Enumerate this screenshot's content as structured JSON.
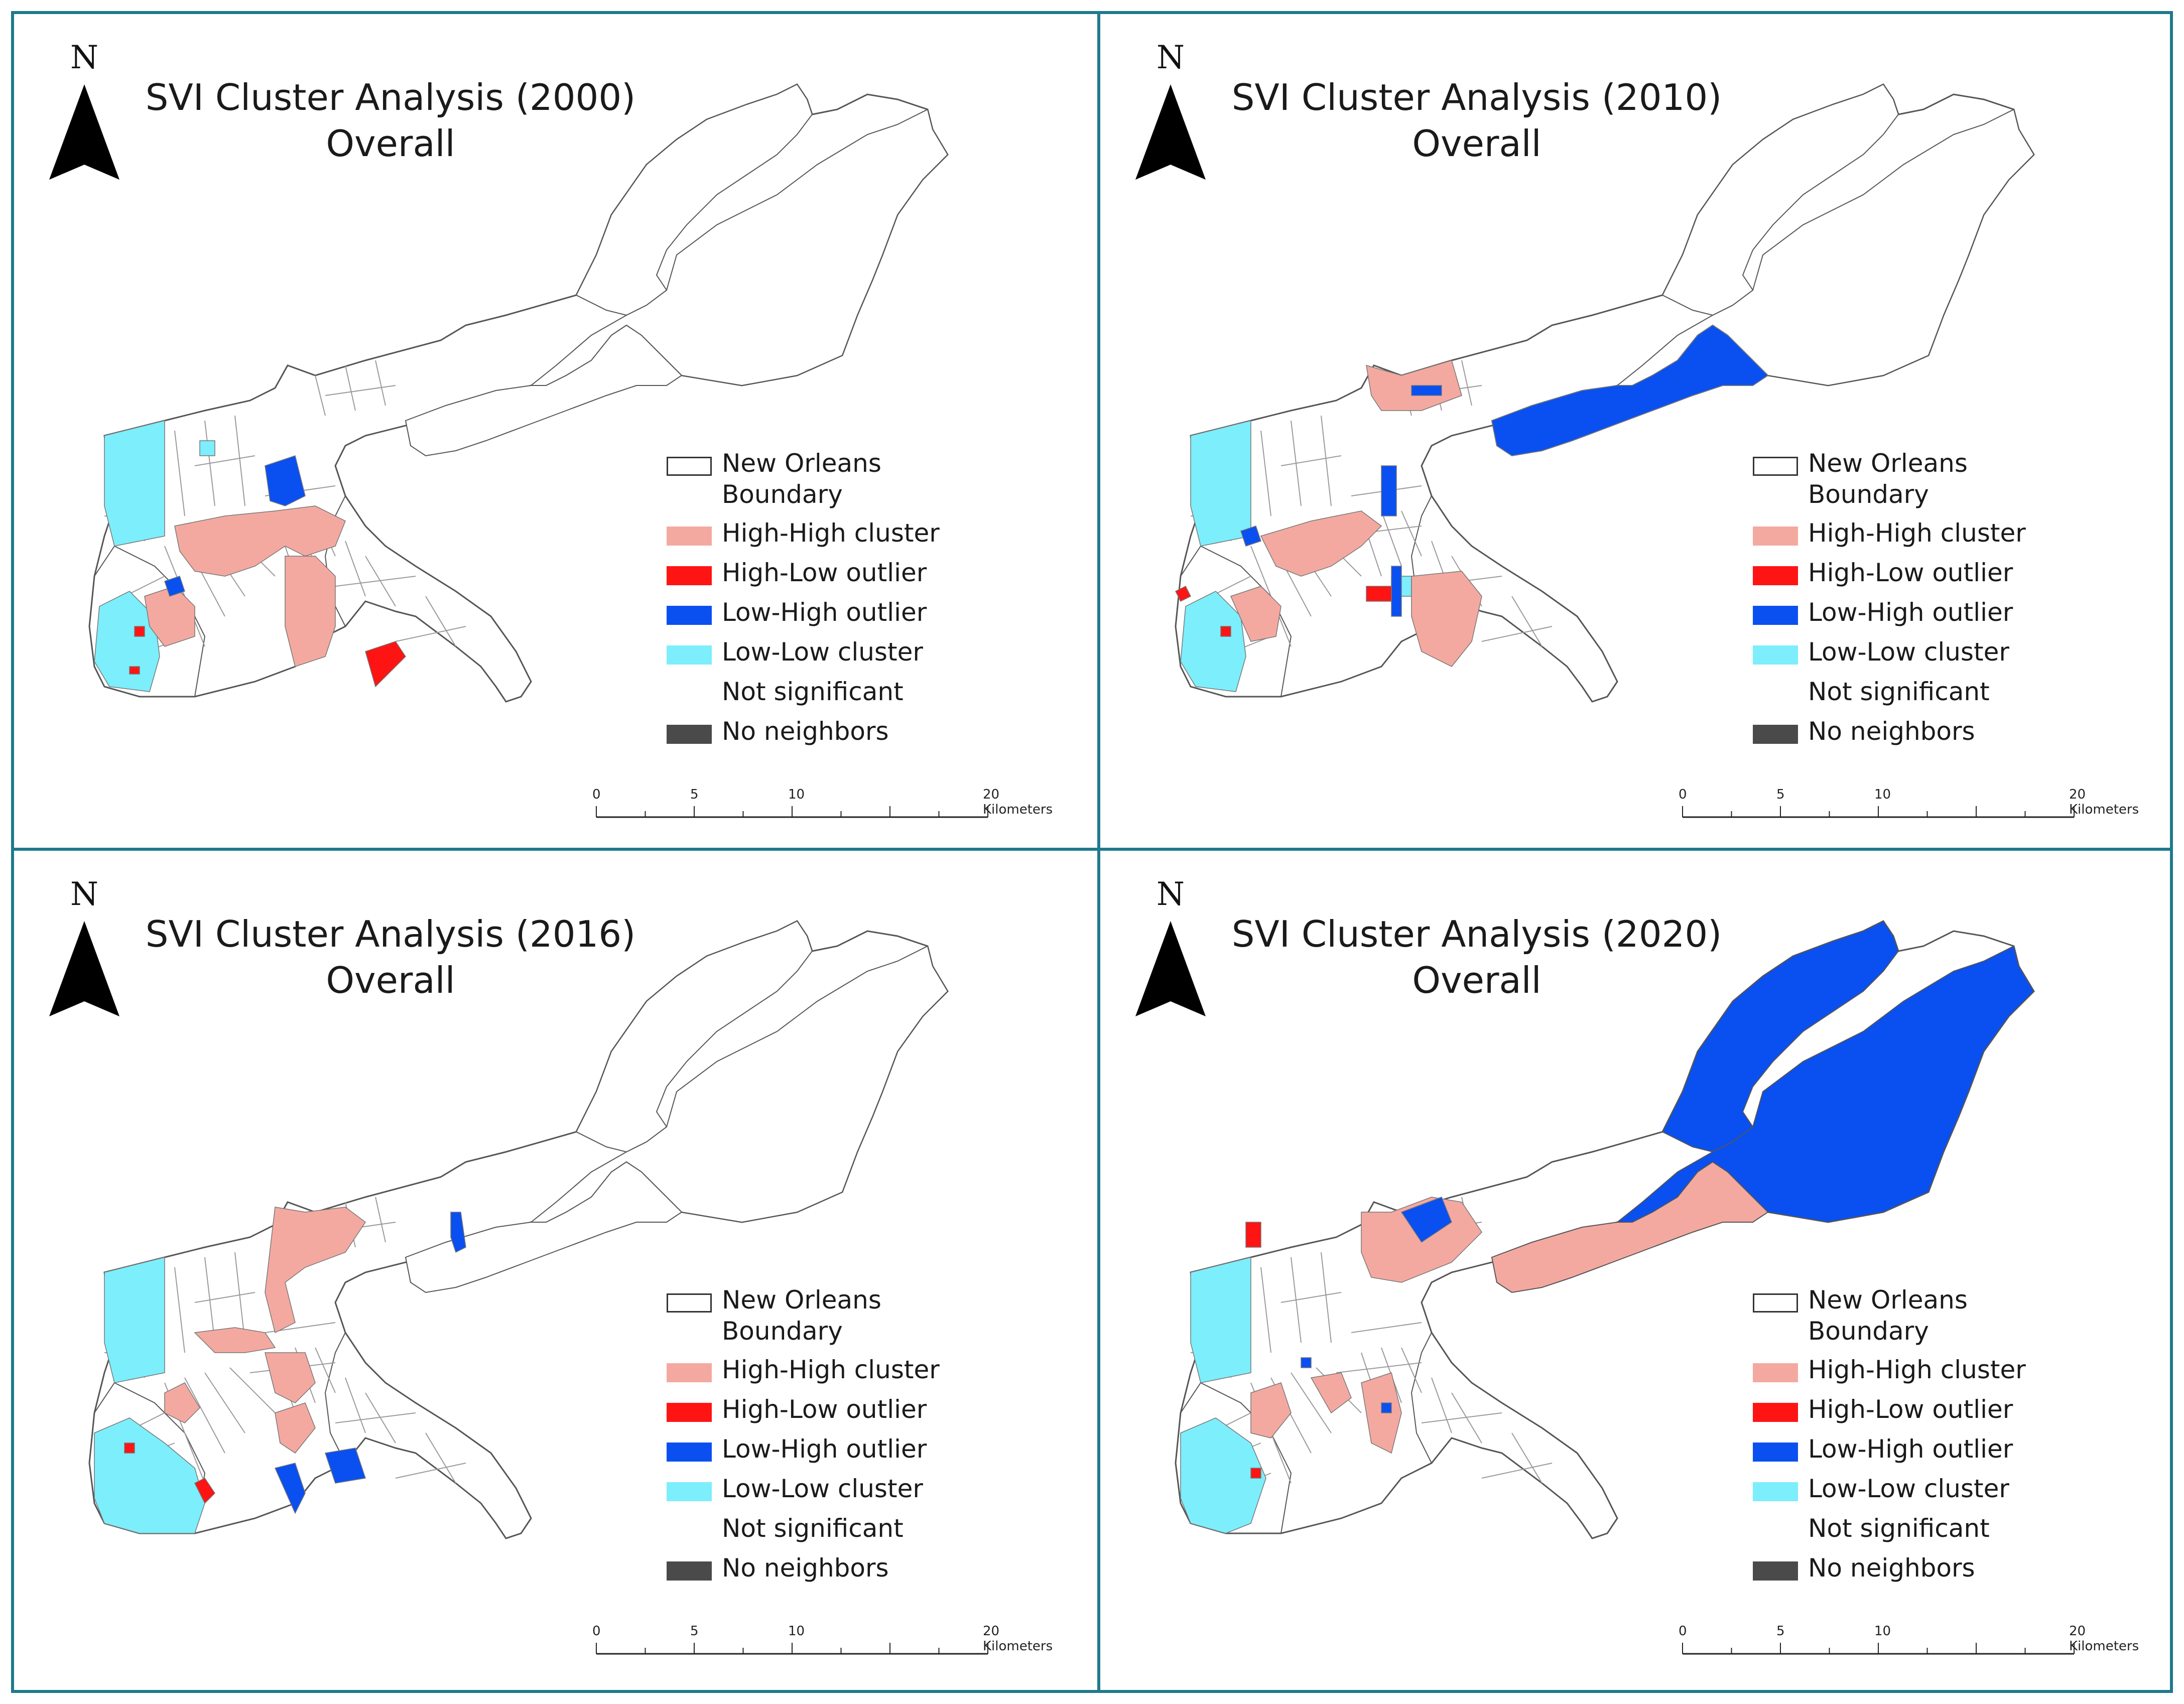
{
  "panels": [
    {
      "id": "2000",
      "title_line1": "SVI Cluster Analysis (2000)",
      "title_line2": "Overall",
      "north": "N",
      "features": {
        "upper_east": "not-significant",
        "lakefront": "not-significant"
      }
    },
    {
      "id": "2010",
      "title_line1": "SVI Cluster Analysis (2010)",
      "title_line2": "Overall",
      "north": "N",
      "features": {
        "upper_east": "not-significant",
        "lakefront": "low-high"
      }
    },
    {
      "id": "2016",
      "title_line1": "SVI Cluster Analysis (2016)",
      "title_line2": "Overall",
      "north": "N",
      "features": {
        "upper_east": "not-significant",
        "lakefront": "not-significant"
      }
    },
    {
      "id": "2020",
      "title_line1": "SVI Cluster Analysis (2020)",
      "title_line2": "Overall",
      "north": "N",
      "features": {
        "upper_east": "low-high",
        "lakefront": "high-high"
      }
    }
  ],
  "legend": [
    {
      "key": "boundary",
      "label": "New Orleans Boundary",
      "color": "#ffffff",
      "outline": "#333333"
    },
    {
      "key": "high-high",
      "label": "High-High cluster",
      "color": "#f4a9a0"
    },
    {
      "key": "high-low",
      "label": "High-Low outlier",
      "color": "#ff1414"
    },
    {
      "key": "low-high",
      "label": "Low-High outlier",
      "color": "#0a50f0"
    },
    {
      "key": "low-low",
      "label": "Low-Low cluster",
      "color": "#7deefc"
    },
    {
      "key": "not-significant",
      "label": "Not significant",
      "color": "#ffffff"
    },
    {
      "key": "no-neighbors",
      "label": "No neighbors",
      "color": "#4a4a4a"
    }
  ],
  "scale": {
    "ticks": [
      "0",
      "5",
      "10",
      "20 Kilometers"
    ],
    "tick_values_km": [
      0,
      5,
      10,
      20
    ]
  },
  "colors": {
    "frame": "#1f7a8c",
    "tract_outline": "#9a9a9a"
  }
}
